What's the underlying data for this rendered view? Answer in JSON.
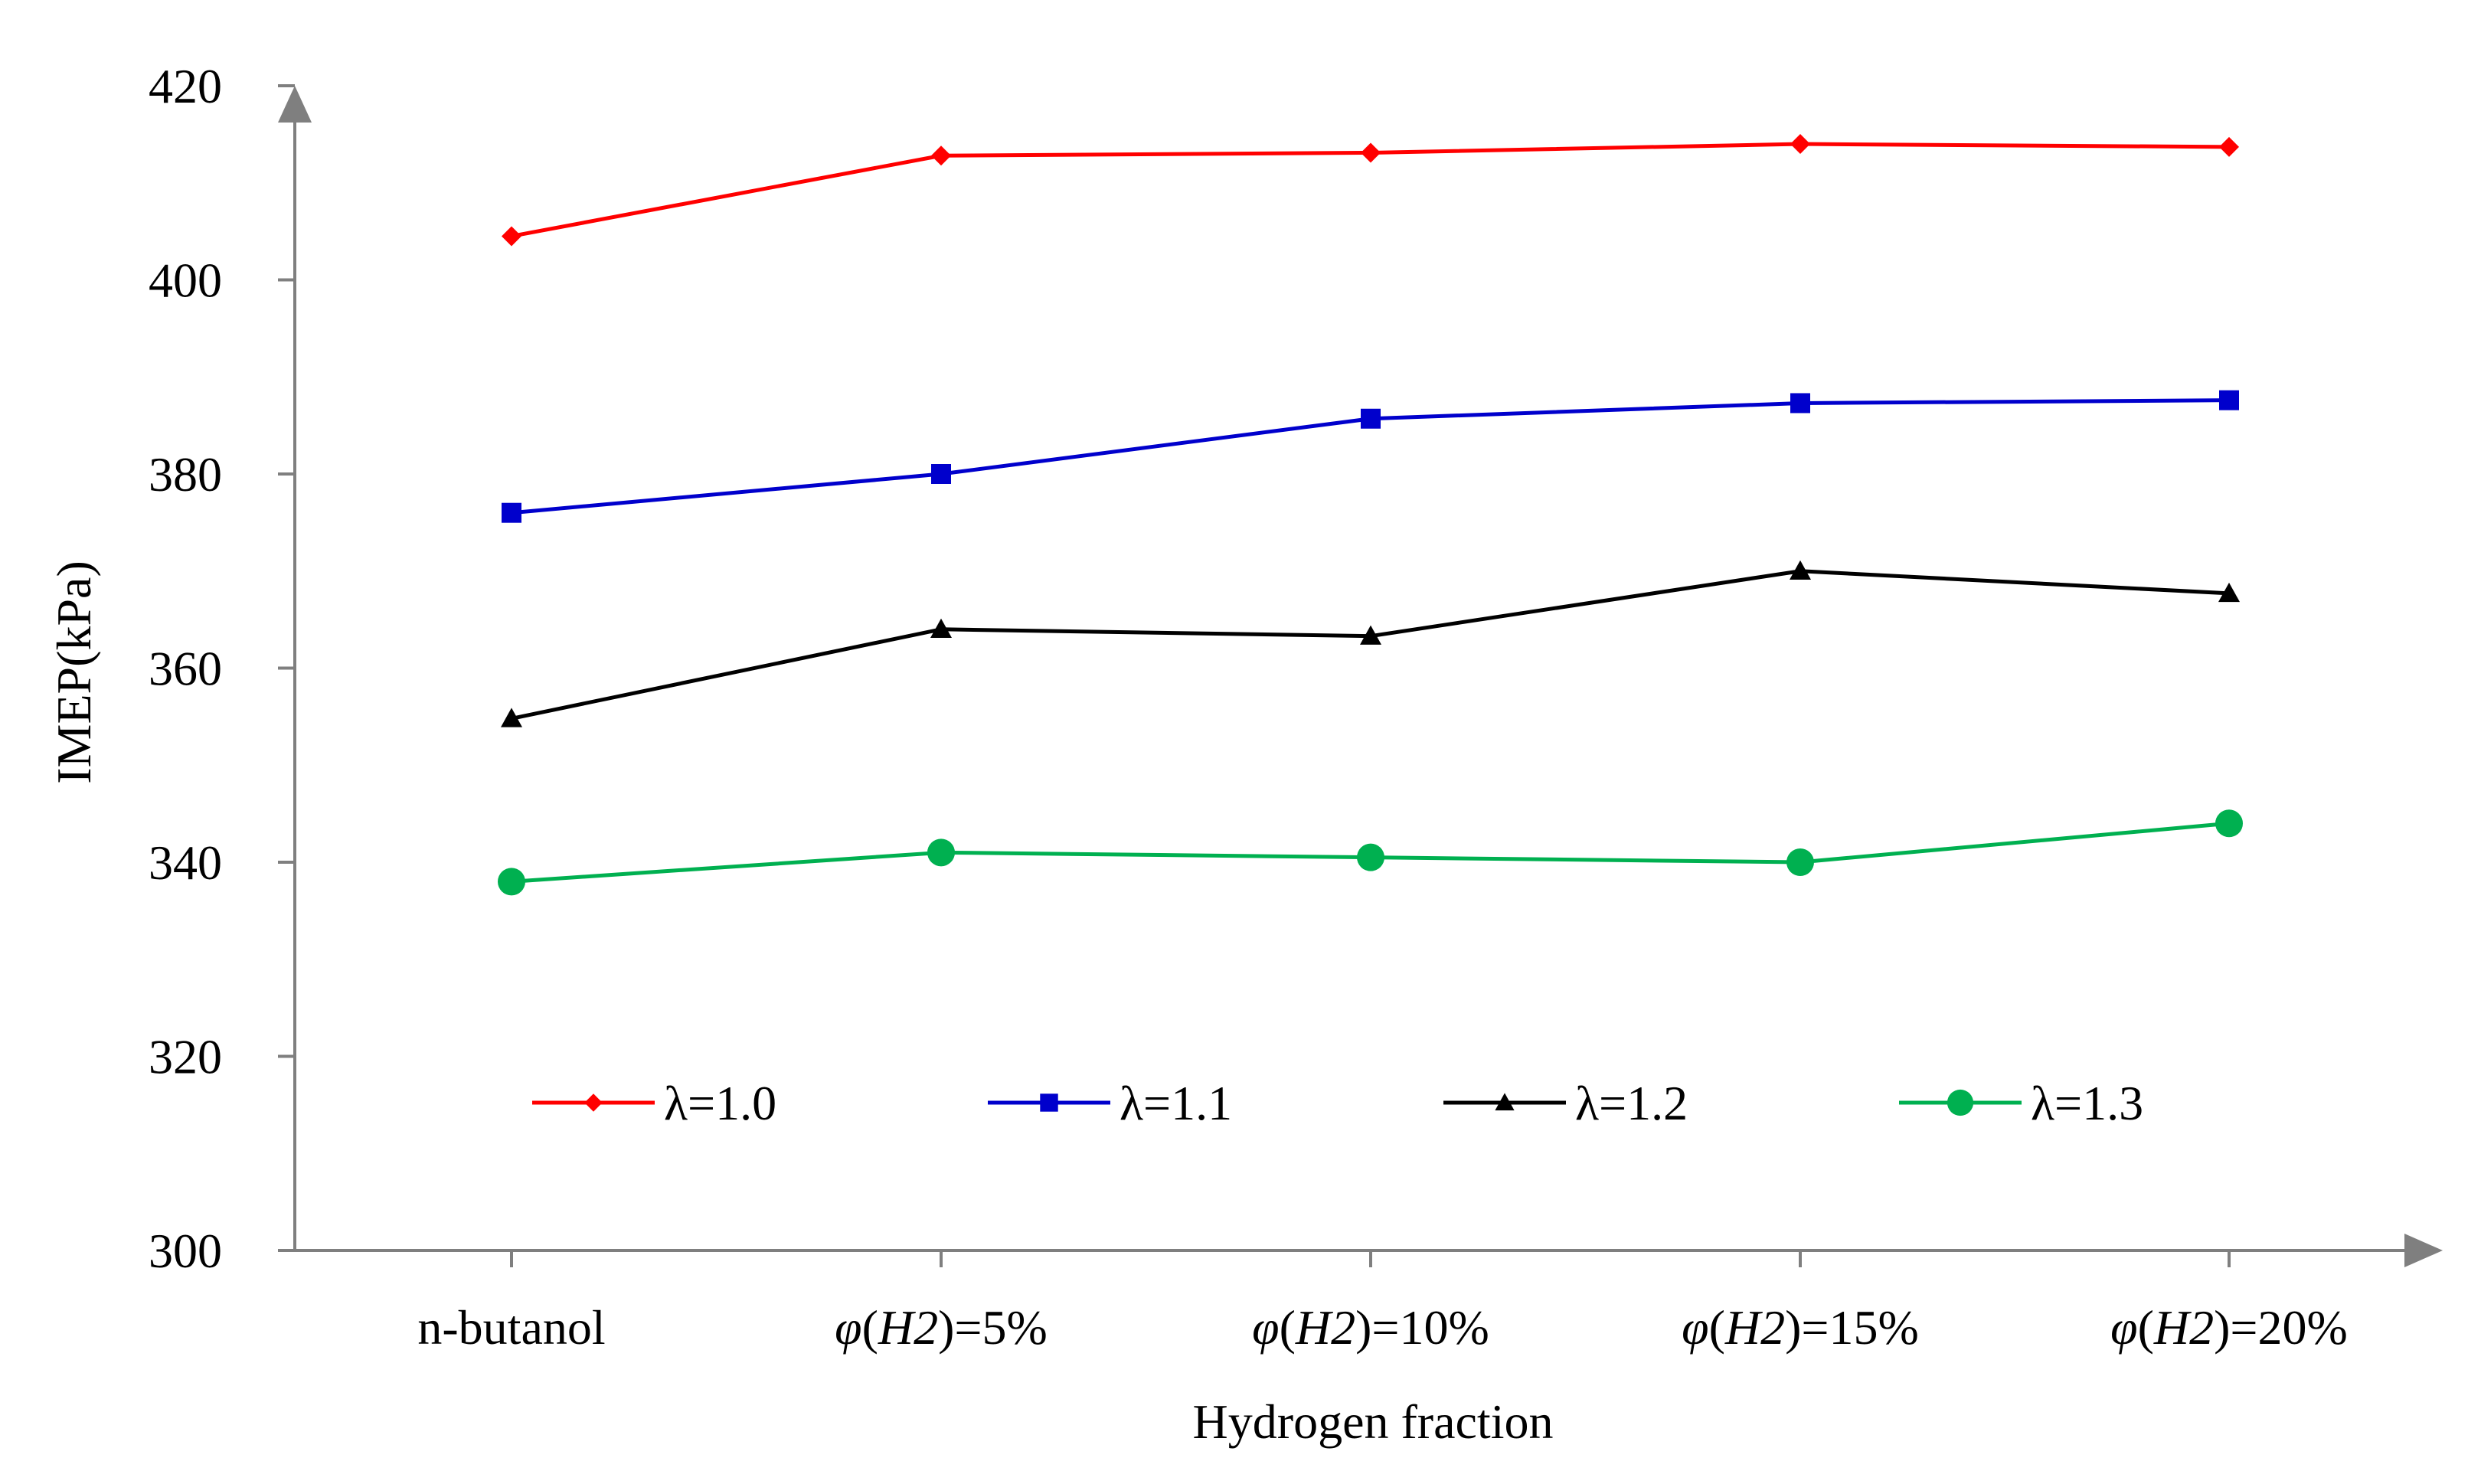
{
  "chart_data": {
    "type": "line",
    "title": "",
    "xlabel": "Hydrogen fraction",
    "ylabel": "IMEP(kPa)",
    "ylim": [
      300,
      420
    ],
    "yticks": [
      "300",
      "320",
      "340",
      "360",
      "380",
      "400",
      "420"
    ],
    "categories": [
      {
        "pre": "n-butanol",
        "italic": "",
        "post": ""
      },
      {
        "pre": "",
        "italic": "φ",
        "mid": "(",
        "italic2": "H2",
        "post": ")=5%"
      },
      {
        "pre": "",
        "italic": "φ",
        "mid": "(",
        "italic2": "H2",
        "post": ")=10%"
      },
      {
        "pre": "",
        "italic": "φ",
        "mid": "(",
        "italic2": "H2",
        "post": ")=15%"
      },
      {
        "pre": "",
        "italic": "φ",
        "mid": "(",
        "italic2": "H2",
        "post": ")=20%"
      }
    ],
    "grid": false,
    "legend_position": "bottom",
    "series": [
      {
        "name": "λ=1.0",
        "color": "#ff0000",
        "marker": "diamond",
        "values": [
          404.5,
          412.8,
          413.1,
          414.0,
          413.7
        ]
      },
      {
        "name": "λ=1.1",
        "color": "#0000cc",
        "marker": "square",
        "values": [
          376.0,
          380.0,
          385.7,
          387.3,
          387.6
        ]
      },
      {
        "name": "λ=1.2",
        "color": "#000000",
        "marker": "triangle",
        "values": [
          354.8,
          364.0,
          363.3,
          370.0,
          367.7
        ]
      },
      {
        "name": "λ=1.3",
        "color": "#00b050",
        "marker": "circle",
        "values": [
          338.0,
          341.0,
          340.5,
          340.0,
          344.0
        ]
      }
    ],
    "axis_color": "#7f7f7f"
  }
}
